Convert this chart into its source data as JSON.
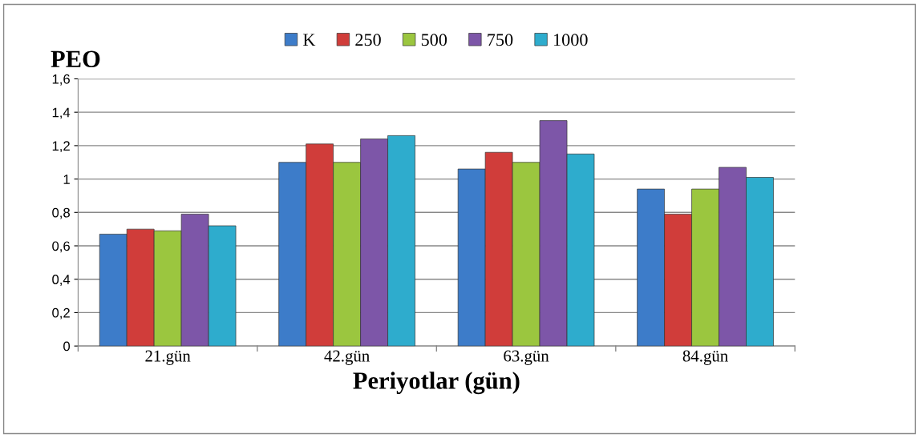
{
  "chart_data": {
    "type": "bar",
    "ylabel": "PEO",
    "xlabel": "Periyotlar (gün)",
    "categories": [
      "21.gün",
      "42.gün",
      "63.gün",
      "84.gün"
    ],
    "series": [
      {
        "name": "K",
        "color": "#3d7cc9",
        "values": [
          0.67,
          1.1,
          1.06,
          0.94
        ]
      },
      {
        "name": "250",
        "color": "#d03d3a",
        "values": [
          0.7,
          1.21,
          1.16,
          0.79
        ]
      },
      {
        "name": "500",
        "color": "#9bc63f",
        "values": [
          0.69,
          1.1,
          1.1,
          0.94
        ]
      },
      {
        "name": "750",
        "color": "#7d56a8",
        "values": [
          0.79,
          1.24,
          1.35,
          1.07
        ]
      },
      {
        "name": "1000",
        "color": "#2eaccd",
        "values": [
          0.72,
          1.26,
          1.15,
          1.01
        ]
      }
    ],
    "ylim": [
      0,
      1.6
    ],
    "yticks": [
      0,
      {
        "value": 0.2,
        "label": "0,2"
      },
      {
        "value": 0.4,
        "label": "0,4"
      },
      {
        "value": 0.6,
        "label": "0,6"
      },
      {
        "value": 0.8,
        "label": "0,8"
      },
      1,
      {
        "value": 1.2,
        "label": "1,2"
      },
      {
        "value": 1.4,
        "label": "1,4"
      },
      {
        "value": 1.6,
        "label": "1,6"
      }
    ],
    "grid": "y",
    "legend": "top"
  }
}
